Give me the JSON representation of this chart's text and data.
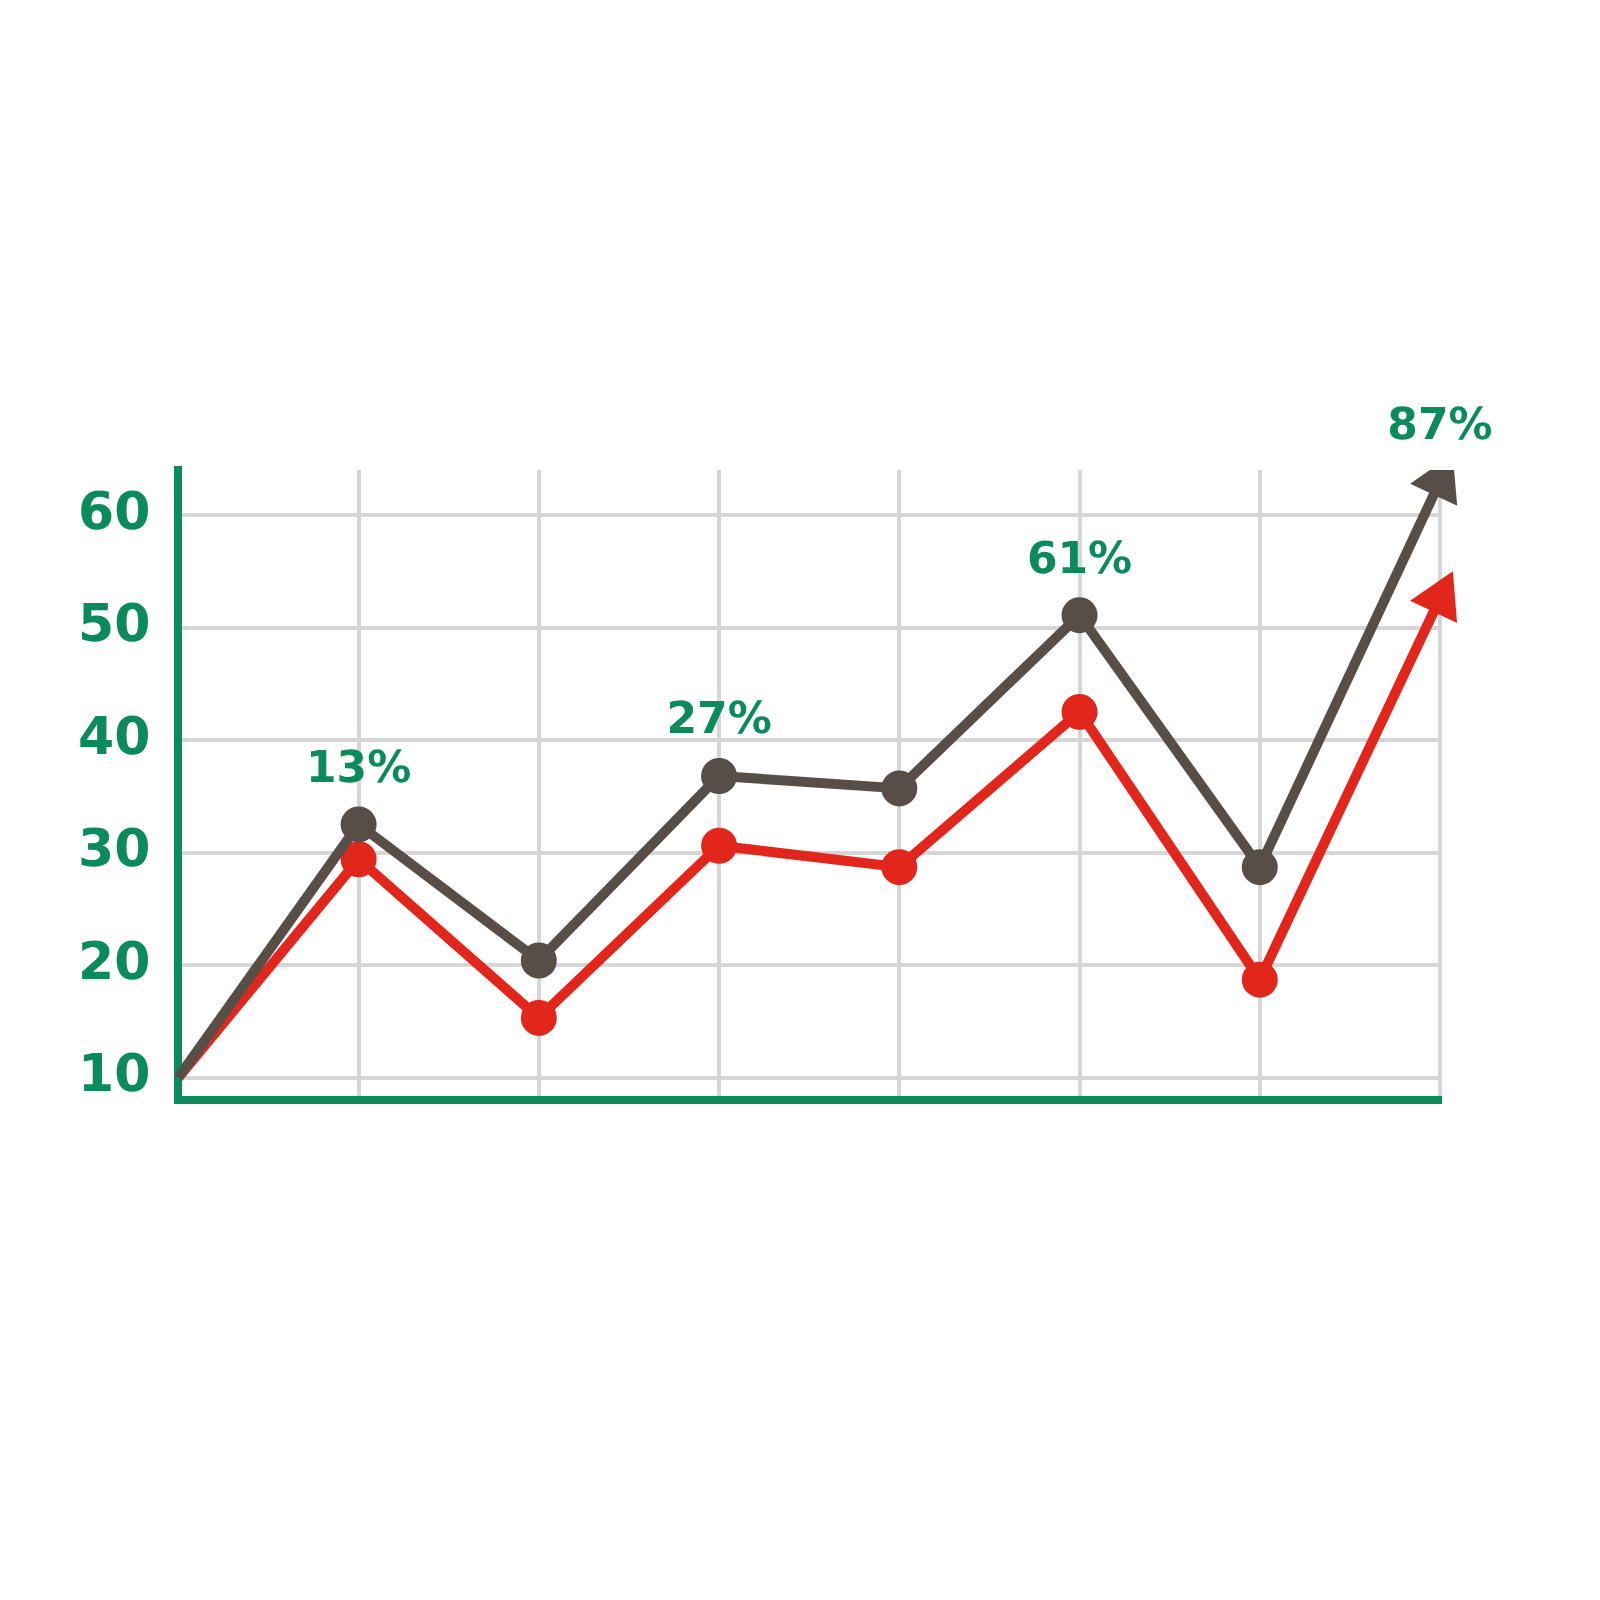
{
  "chart_data": {
    "type": "line",
    "categories": [
      null,
      null,
      null,
      null,
      null,
      null,
      null,
      null
    ],
    "ylim": [
      8,
      64
    ],
    "yticks": [
      10,
      20,
      30,
      40,
      50,
      60
    ],
    "tick_labels": "y",
    "grid": true,
    "marker": "circle",
    "line_style": "solid",
    "series": [
      {
        "color": "#564e47",
        "values": [
          10,
          32.5,
          20.4,
          36.8,
          35.7,
          51.1,
          28.7,
          63
        ]
      },
      {
        "color": "#e2261b",
        "values": [
          10,
          29.4,
          15.3,
          30.6,
          28.7,
          42.5,
          18.7,
          52.6
        ]
      }
    ],
    "annotations": [
      {
        "text": "13%",
        "y": 32.5
      },
      {
        "text": "27%",
        "y": 36.8
      },
      {
        "text": "61%",
        "y": 51.1
      },
      {
        "text": "87%",
        "y": 63
      }
    ]
  }
}
